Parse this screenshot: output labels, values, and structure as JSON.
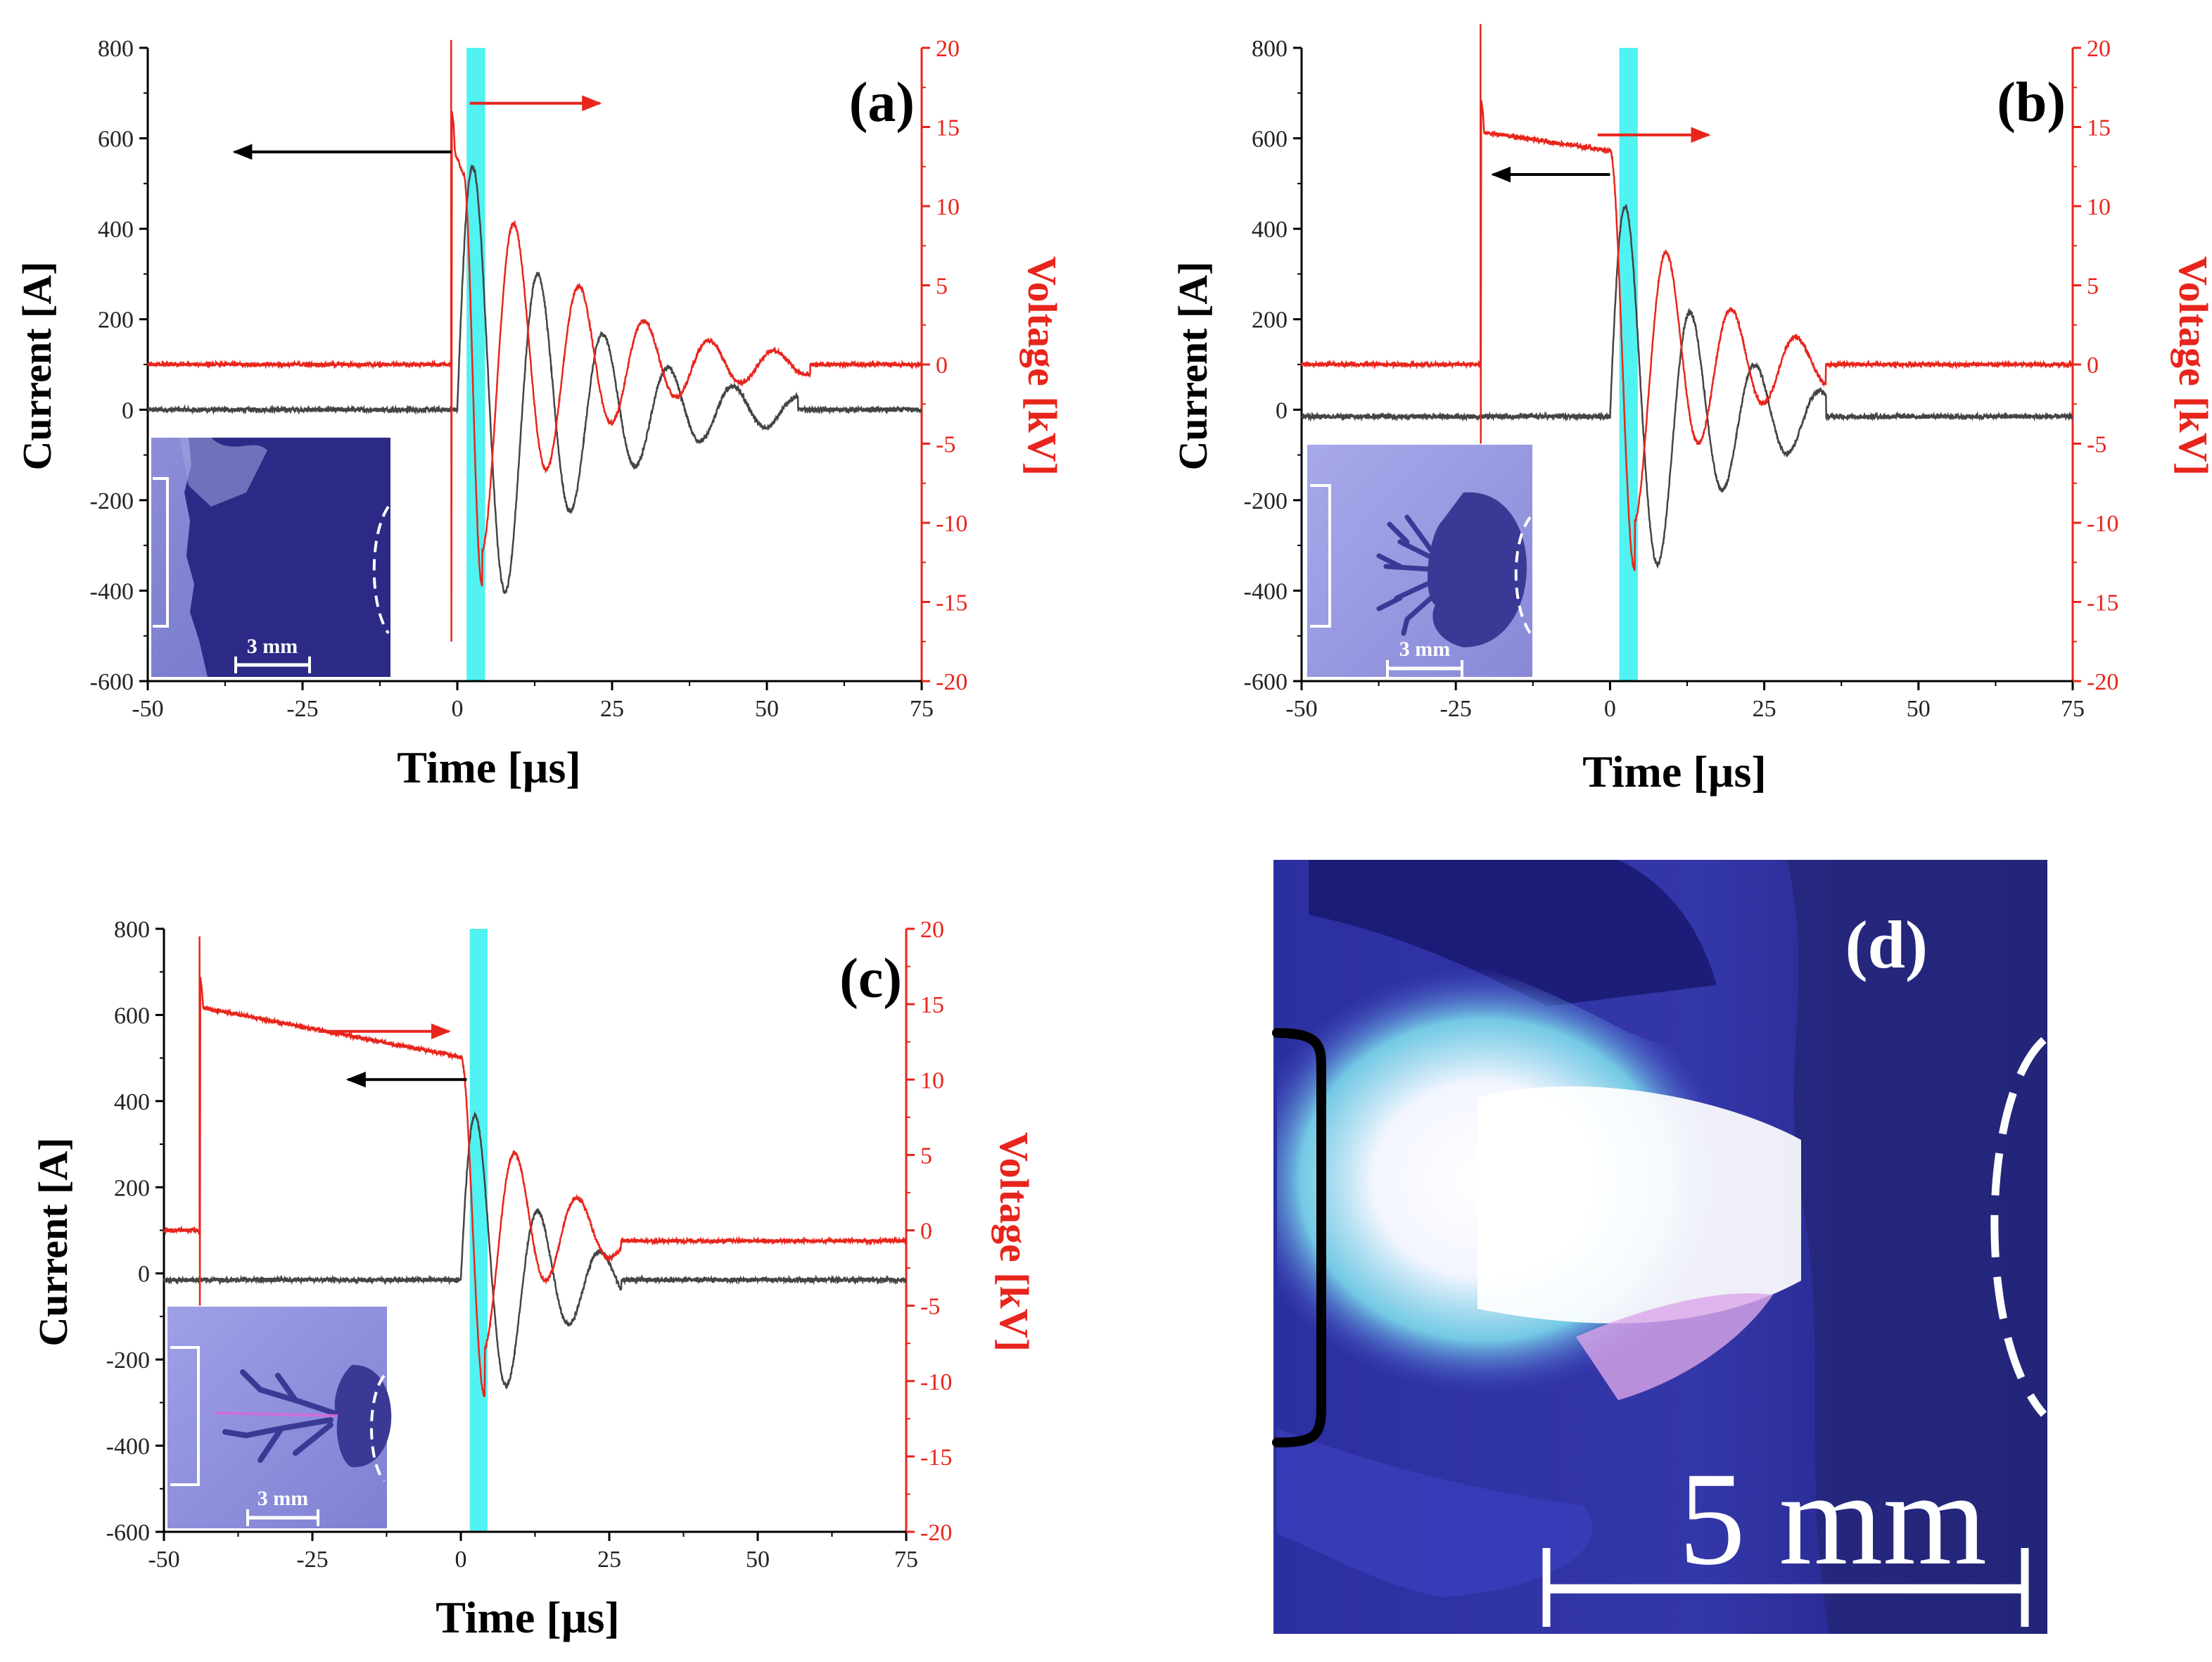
{
  "figure": {
    "panels": [
      {
        "label": "(a)",
        "inset_scale": "3 mm",
        "xlabel": "Time [µs]",
        "ylabel_left": "Current [A]",
        "ylabel_right": "Voltage [kV]"
      },
      {
        "label": "(b)",
        "inset_scale": "3 mm",
        "xlabel": "Time [µs]",
        "ylabel_left": "Current [A]",
        "ylabel_right": "Voltage [kV]"
      },
      {
        "label": "(c)",
        "inset_scale": "3 mm",
        "xlabel": "Time [µs]",
        "ylabel_left": "Current [A]",
        "ylabel_right": "Voltage [kV]"
      }
    ],
    "photo_d": {
      "label": "(d)",
      "scale": "5 mm"
    }
  },
  "colors": {
    "current": "#444444",
    "voltage": "#e8251c",
    "highlight": "#33f0f0"
  },
  "chart_data": [
    {
      "type": "line",
      "panel": "(a)",
      "xlabel": "Time [µs]",
      "ylabel": "Current [A]",
      "y2label": "Voltage [kV]",
      "xlim": [
        -50,
        75
      ],
      "ylim": [
        -600,
        800
      ],
      "y2lim": [
        -20,
        20
      ],
      "xticks": [
        -50,
        -25,
        0,
        25,
        50,
        75
      ],
      "yticks": [
        -600,
        -400,
        -200,
        0,
        200,
        400,
        600,
        800
      ],
      "y2ticks": [
        -20,
        -15,
        -10,
        -5,
        0,
        5,
        10,
        15,
        20
      ],
      "highlight_band": [
        1.5,
        4.5
      ],
      "current": {
        "t0": 0.0,
        "baseline": 0,
        "step": 0,
        "amp": 620,
        "period": 10.5,
        "decay": 18,
        "end": 55,
        "noise": 5,
        "x": [
          -50,
          0,
          3,
          8,
          13,
          18,
          23,
          29,
          34,
          39,
          44,
          50,
          55,
          60,
          75
        ],
        "y": [
          0,
          0,
          620,
          -510,
          410,
          -340,
          260,
          -200,
          160,
          -130,
          85,
          -60,
          10,
          0,
          0
        ]
      },
      "voltage": {
        "baseline": 0,
        "spike_t": -1,
        "spike_max": 20.5,
        "spike_min": -17.5,
        "pre_t": -1,
        "pre_level": 14,
        "pre_end_t": 1,
        "pre_end_level": 12,
        "amp": 14,
        "period": 10.5,
        "phase_t": 4.0,
        "decay": 18,
        "end": 57,
        "end_level": 0,
        "noise": 0.12,
        "x": [
          -50,
          -1,
          1,
          4,
          9,
          15,
          20,
          25,
          30,
          35,
          40,
          45,
          50,
          55,
          60,
          75
        ],
        "y": [
          0,
          20.5,
          12,
          -13.5,
          11,
          -10,
          8,
          -6,
          5,
          -4,
          3,
          -2,
          1.5,
          -0.7,
          0,
          0
        ]
      },
      "arrows": [
        {
          "series": "Current [A]",
          "direction": "left",
          "x_from": -1,
          "x_to": -36,
          "y": 570
        },
        {
          "series": "Voltage [kV]",
          "direction": "right",
          "x_from": 2,
          "x_to": 23,
          "y": 16.5
        }
      ]
    },
    {
      "type": "line",
      "panel": "(b)",
      "xlabel": "Time [µs]",
      "ylabel": "Current [A]",
      "y2label": "Voltage [kV]",
      "xlim": [
        -50,
        75
      ],
      "ylim": [
        -600,
        800
      ],
      "y2lim": [
        -20,
        20
      ],
      "xticks": [
        -50,
        -25,
        0,
        25,
        50,
        75
      ],
      "yticks": [
        -600,
        -400,
        -200,
        0,
        200,
        400,
        600,
        800
      ],
      "y2ticks": [
        -20,
        -15,
        -10,
        -5,
        0,
        5,
        10,
        15,
        20
      ],
      "highlight_band": [
        1.5,
        4.5
      ],
      "current": {
        "t0": 0.0,
        "baseline": -15,
        "step": 0,
        "amp": 550,
        "period": 10.5,
        "decay": 15,
        "end": 35,
        "noise": 5,
        "x": [
          -50,
          0,
          3,
          8,
          13,
          19,
          24,
          29,
          34,
          40,
          75
        ],
        "y": [
          -15,
          -15,
          550,
          -450,
          340,
          -265,
          160,
          -105,
          25,
          -15,
          -15
        ]
      },
      "voltage": {
        "baseline": 0,
        "spike_t": -21,
        "spike_max": 21.5,
        "spike_min": -5,
        "pre_t": -21,
        "pre_level": 14.7,
        "pre_end_t": 0,
        "pre_end_level": 13.5,
        "amp": 13,
        "period": 10.5,
        "phase_t": 4.0,
        "decay": 15,
        "end": 35,
        "end_level": 0,
        "noise": 0.12,
        "x": [
          -50,
          -21,
          -20,
          0,
          1,
          4,
          9,
          15,
          20,
          25,
          30,
          35,
          75
        ],
        "y": [
          0,
          21.5,
          14.7,
          13.5,
          3,
          -12,
          9.5,
          -7.5,
          5,
          -2.5,
          1.5,
          0,
          0
        ]
      },
      "arrows": [
        {
          "series": "Current [A]",
          "direction": "left",
          "x_from": 0,
          "x_to": -19,
          "y": 520
        },
        {
          "series": "Voltage [kV]",
          "direction": "right",
          "x_from": -2,
          "x_to": 16,
          "y": 14.5
        }
      ]
    },
    {
      "type": "line",
      "panel": "(c)",
      "xlabel": "Time [µs]",
      "ylabel": "Current [A]",
      "y2label": "Voltage [kV]",
      "xlim": [
        -50,
        75
      ],
      "ylim": [
        -600,
        800
      ],
      "y2lim": [
        -20,
        20
      ],
      "xticks": [
        -50,
        -25,
        0,
        25,
        50,
        75
      ],
      "yticks": [
        -600,
        -400,
        -200,
        0,
        200,
        400,
        600,
        800
      ],
      "y2ticks": [
        -20,
        -15,
        -10,
        -5,
        0,
        5,
        10,
        15,
        20
      ],
      "highlight_band": [
        1.5,
        4.5
      ],
      "current": {
        "t0": 0.0,
        "baseline": -15,
        "step": 0,
        "amp": 470,
        "period": 10.5,
        "decay": 12,
        "end": 27,
        "noise": 5,
        "x": [
          -50,
          0,
          3,
          8,
          13,
          19,
          24,
          28,
          75
        ],
        "y": [
          -15,
          -15,
          470,
          -360,
          245,
          -170,
          65,
          -15,
          -15
        ]
      },
      "voltage": {
        "baseline": 0,
        "spike_t": -44,
        "spike_max": 19.5,
        "spike_min": -5,
        "pre_t": -44,
        "pre_level": 14.8,
        "pre_end_t": 0,
        "pre_end_level": 11.5,
        "amp": 11,
        "period": 10.5,
        "phase_t": 4.0,
        "decay": 12,
        "end": 27,
        "end_level": -0.7,
        "noise": 0.12,
        "x": [
          -50,
          -44,
          -43,
          0,
          1,
          4,
          9,
          15,
          20,
          25,
          75
        ],
        "y": [
          0,
          19.5,
          14.8,
          11.5,
          3,
          -9.5,
          7,
          -5,
          2.5,
          -0.7,
          -0.7
        ]
      },
      "arrows": [
        {
          "series": "Current [A]",
          "direction": "left",
          "x_from": 1,
          "x_to": -19,
          "y": 450
        },
        {
          "series": "Voltage [kV]",
          "direction": "right",
          "x_from": -24,
          "x_to": -2,
          "y": 13.2
        }
      ]
    }
  ]
}
